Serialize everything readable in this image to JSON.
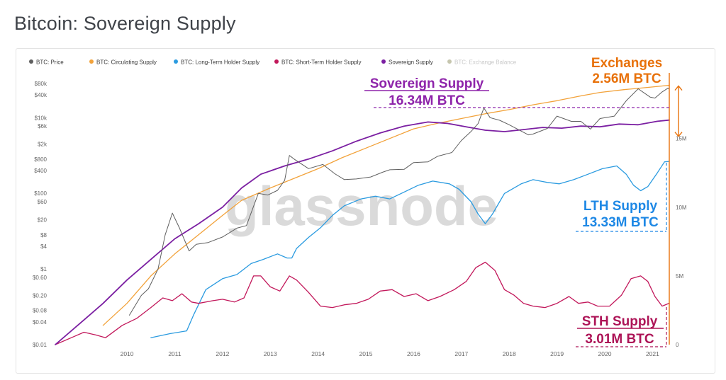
{
  "page": {
    "title": "Bitcoin: Sovereign Supply"
  },
  "colors": {
    "price": "#5f5f5f",
    "circulating": "#f2a23a",
    "lth": "#2b9be0",
    "sth": "#c2185b",
    "sovereign": "#7b1fa2",
    "exchange": "#b8b89a",
    "exchanges_annotation": "#e8710a",
    "sovereign_annotation": "#8e24aa",
    "lth_annotation": "#1e88e5",
    "sth_annotation": "#ad1457",
    "watermark": "#d9d9d9"
  },
  "chart_data": {
    "type": "line",
    "title": "Bitcoin: Sovereign Supply",
    "watermark": "glassnode",
    "x_ticks": [
      "2010",
      "2011",
      "2012",
      "2013",
      "2014",
      "2015",
      "2016",
      "2017",
      "2018",
      "2019",
      "2020",
      "2021"
    ],
    "x_range": [
      2009.0,
      2021.85
    ],
    "left_axis": {
      "scale": "log",
      "ticks": [
        "$80k",
        "$40k",
        "$10k",
        "$6k",
        "$2k",
        "$800",
        "$400",
        "$100",
        "$60",
        "$20",
        "$8",
        "$4",
        "$1",
        "$0.60",
        "$0.20",
        "$0.08",
        "$0.04",
        "$0.01"
      ],
      "tick_values": [
        80000,
        40000,
        10000,
        6000,
        2000,
        800,
        400,
        100,
        60,
        20,
        8,
        4,
        1,
        0.6,
        0.2,
        0.08,
        0.04,
        0.01
      ],
      "range": [
        0.01,
        80000
      ]
    },
    "right_axis": {
      "scale": "linear",
      "ticks": [
        "15M",
        "10M",
        "5M",
        "0"
      ],
      "tick_values": [
        15000000,
        10000000,
        5000000,
        0
      ],
      "range": [
        0,
        19000000
      ]
    },
    "legend": [
      {
        "name": "BTC: Price",
        "color_key": "price",
        "faded": false
      },
      {
        "name": "BTC: Circulating Supply",
        "color_key": "circulating",
        "faded": false
      },
      {
        "name": "BTC: Long-Term Holder Supply",
        "color_key": "lth",
        "faded": false
      },
      {
        "name": "BTC: Short-Term Holder Supply",
        "color_key": "sth",
        "faded": false
      },
      {
        "name": "Sovereign Supply",
        "color_key": "sovereign",
        "faded": false
      },
      {
        "name": "BTC: Exchange Balance",
        "color_key": "exchange",
        "faded": true
      }
    ],
    "series": [
      {
        "name": "BTC: Price",
        "axis": "left",
        "color_key": "price",
        "width": 1,
        "points": [
          [
            2010.55,
            0.06
          ],
          [
            2010.8,
            0.2
          ],
          [
            2010.95,
            0.3
          ],
          [
            2011.15,
            1
          ],
          [
            2011.3,
            8
          ],
          [
            2011.45,
            30
          ],
          [
            2011.6,
            12
          ],
          [
            2011.8,
            3
          ],
          [
            2011.95,
            4.5
          ],
          [
            2012.2,
            5
          ],
          [
            2012.5,
            7
          ],
          [
            2012.8,
            12
          ],
          [
            2013.0,
            14
          ],
          [
            2013.25,
            100
          ],
          [
            2013.45,
            90
          ],
          [
            2013.65,
            120
          ],
          [
            2013.8,
            220
          ],
          [
            2013.9,
            1000
          ],
          [
            2014.0,
            800
          ],
          [
            2014.3,
            450
          ],
          [
            2014.6,
            580
          ],
          [
            2014.85,
            330
          ],
          [
            2015.05,
            230
          ],
          [
            2015.3,
            240
          ],
          [
            2015.6,
            270
          ],
          [
            2015.85,
            360
          ],
          [
            2016.0,
            420
          ],
          [
            2016.3,
            430
          ],
          [
            2016.5,
            650
          ],
          [
            2016.8,
            680
          ],
          [
            2017.0,
            950
          ],
          [
            2017.3,
            1200
          ],
          [
            2017.5,
            2500
          ],
          [
            2017.7,
            4300
          ],
          [
            2017.85,
            7000
          ],
          [
            2017.97,
            18000
          ],
          [
            2018.1,
            10000
          ],
          [
            2018.3,
            8500
          ],
          [
            2018.5,
            6500
          ],
          [
            2018.9,
            3500
          ],
          [
            2019.0,
            3700
          ],
          [
            2019.3,
            5200
          ],
          [
            2019.5,
            11000
          ],
          [
            2019.8,
            8000
          ],
          [
            2020.0,
            8000
          ],
          [
            2020.2,
            5000
          ],
          [
            2020.4,
            9500
          ],
          [
            2020.7,
            11000
          ],
          [
            2020.95,
            28000
          ],
          [
            2021.2,
            58000
          ],
          [
            2021.45,
            35000
          ],
          [
            2021.55,
            33000
          ],
          [
            2021.7,
            48000
          ],
          [
            2021.82,
            60000
          ],
          [
            2021.85,
            57000
          ]
        ]
      },
      {
        "name": "BTC: Circulating Supply",
        "axis": "right",
        "color_key": "circulating",
        "width": 1.3,
        "points": [
          [
            2010.0,
            1400000
          ],
          [
            2010.5,
            3000000
          ],
          [
            2011.0,
            5000000
          ],
          [
            2011.5,
            6600000
          ],
          [
            2012.0,
            8000000
          ],
          [
            2012.5,
            9400000
          ],
          [
            2012.9,
            10500000
          ],
          [
            2013.5,
            11400000
          ],
          [
            2014.0,
            12100000
          ],
          [
            2014.5,
            12800000
          ],
          [
            2015.0,
            13600000
          ],
          [
            2015.5,
            14300000
          ],
          [
            2016.0,
            15000000
          ],
          [
            2016.5,
            15700000
          ],
          [
            2017.0,
            16100000
          ],
          [
            2017.5,
            16450000
          ],
          [
            2018.0,
            16800000
          ],
          [
            2018.5,
            17100000
          ],
          [
            2019.0,
            17450000
          ],
          [
            2019.5,
            17750000
          ],
          [
            2020.0,
            18100000
          ],
          [
            2020.4,
            18350000
          ],
          [
            2020.9,
            18550000
          ],
          [
            2021.5,
            18750000
          ],
          [
            2021.85,
            18870000
          ]
        ]
      },
      {
        "name": "BTC: Long-Term Holder Supply",
        "axis": "right",
        "color_key": "lth",
        "width": 1.3,
        "points": [
          [
            2011.0,
            500000
          ],
          [
            2011.4,
            800000
          ],
          [
            2011.75,
            1000000
          ],
          [
            2011.9,
            2200000
          ],
          [
            2012.15,
            4000000
          ],
          [
            2012.5,
            4800000
          ],
          [
            2012.8,
            5100000
          ],
          [
            2013.1,
            5900000
          ],
          [
            2013.35,
            6200000
          ],
          [
            2013.65,
            6600000
          ],
          [
            2013.85,
            6300000
          ],
          [
            2013.95,
            6300000
          ],
          [
            2014.05,
            7000000
          ],
          [
            2014.3,
            7800000
          ],
          [
            2014.55,
            8500000
          ],
          [
            2014.8,
            9400000
          ],
          [
            2015.05,
            10100000
          ],
          [
            2015.4,
            10600000
          ],
          [
            2015.7,
            10800000
          ],
          [
            2016.0,
            10600000
          ],
          [
            2016.3,
            11100000
          ],
          [
            2016.6,
            11600000
          ],
          [
            2016.9,
            11900000
          ],
          [
            2017.25,
            11700000
          ],
          [
            2017.45,
            11300000
          ],
          [
            2017.7,
            10400000
          ],
          [
            2017.85,
            9500000
          ],
          [
            2018.0,
            8800000
          ],
          [
            2018.15,
            9500000
          ],
          [
            2018.4,
            11000000
          ],
          [
            2018.75,
            11700000
          ],
          [
            2019.0,
            12000000
          ],
          [
            2019.3,
            11800000
          ],
          [
            2019.55,
            11700000
          ],
          [
            2019.85,
            12000000
          ],
          [
            2020.15,
            12400000
          ],
          [
            2020.45,
            12800000
          ],
          [
            2020.75,
            13000000
          ],
          [
            2020.95,
            12400000
          ],
          [
            2021.1,
            11600000
          ],
          [
            2021.25,
            11200000
          ],
          [
            2021.4,
            11500000
          ],
          [
            2021.6,
            12500000
          ],
          [
            2021.75,
            13300000
          ],
          [
            2021.85,
            13330000
          ]
        ]
      },
      {
        "name": "BTC: Short-Term Holder Supply",
        "axis": "right",
        "color_key": "sth",
        "width": 1.3,
        "points": [
          [
            2009.0,
            0
          ],
          [
            2009.4,
            600000
          ],
          [
            2009.6,
            900000
          ],
          [
            2009.85,
            700000
          ],
          [
            2010.05,
            500000
          ],
          [
            2010.4,
            1400000
          ],
          [
            2010.7,
            1900000
          ],
          [
            2011.0,
            2700000
          ],
          [
            2011.25,
            3400000
          ],
          [
            2011.45,
            3200000
          ],
          [
            2011.65,
            3700000
          ],
          [
            2011.85,
            3100000
          ],
          [
            2012.0,
            3000000
          ],
          [
            2012.3,
            3200000
          ],
          [
            2012.5,
            3300000
          ],
          [
            2012.75,
            3100000
          ],
          [
            2012.95,
            3400000
          ],
          [
            2013.15,
            5000000
          ],
          [
            2013.3,
            5000000
          ],
          [
            2013.5,
            4200000
          ],
          [
            2013.7,
            3900000
          ],
          [
            2013.9,
            5000000
          ],
          [
            2014.05,
            4700000
          ],
          [
            2014.3,
            3800000
          ],
          [
            2014.55,
            2800000
          ],
          [
            2014.8,
            2700000
          ],
          [
            2015.05,
            2900000
          ],
          [
            2015.3,
            3000000
          ],
          [
            2015.55,
            3300000
          ],
          [
            2015.8,
            3900000
          ],
          [
            2016.05,
            4000000
          ],
          [
            2016.3,
            3500000
          ],
          [
            2016.55,
            3700000
          ],
          [
            2016.8,
            3200000
          ],
          [
            2017.05,
            3500000
          ],
          [
            2017.35,
            4000000
          ],
          [
            2017.6,
            4600000
          ],
          [
            2017.8,
            5600000
          ],
          [
            2018.0,
            6000000
          ],
          [
            2018.2,
            5400000
          ],
          [
            2018.4,
            4000000
          ],
          [
            2018.6,
            3600000
          ],
          [
            2018.8,
            3000000
          ],
          [
            2019.0,
            2800000
          ],
          [
            2019.25,
            2700000
          ],
          [
            2019.5,
            3000000
          ],
          [
            2019.75,
            3500000
          ],
          [
            2019.95,
            3000000
          ],
          [
            2020.15,
            3100000
          ],
          [
            2020.35,
            2800000
          ],
          [
            2020.6,
            2800000
          ],
          [
            2020.85,
            3600000
          ],
          [
            2021.05,
            4800000
          ],
          [
            2021.25,
            5000000
          ],
          [
            2021.4,
            4600000
          ],
          [
            2021.55,
            3500000
          ],
          [
            2021.7,
            2800000
          ],
          [
            2021.85,
            3010000
          ]
        ]
      },
      {
        "name": "Sovereign Supply",
        "axis": "right",
        "color_key": "sovereign",
        "width": 1.8,
        "points": [
          [
            2009.0,
            0
          ],
          [
            2009.5,
            1500000
          ],
          [
            2010.0,
            3000000
          ],
          [
            2010.5,
            4700000
          ],
          [
            2011.0,
            6200000
          ],
          [
            2011.5,
            7700000
          ],
          [
            2012.0,
            8800000
          ],
          [
            2012.5,
            10000000
          ],
          [
            2012.9,
            11400000
          ],
          [
            2013.3,
            12400000
          ],
          [
            2013.8,
            13000000
          ],
          [
            2014.3,
            13500000
          ],
          [
            2014.8,
            14100000
          ],
          [
            2015.3,
            14800000
          ],
          [
            2015.8,
            15400000
          ],
          [
            2016.3,
            15900000
          ],
          [
            2016.8,
            16200000
          ],
          [
            2017.2,
            16100000
          ],
          [
            2017.6,
            15850000
          ],
          [
            2018.0,
            15600000
          ],
          [
            2018.4,
            15500000
          ],
          [
            2018.8,
            15650000
          ],
          [
            2019.2,
            15800000
          ],
          [
            2019.6,
            15750000
          ],
          [
            2020.0,
            15900000
          ],
          [
            2020.4,
            15850000
          ],
          [
            2020.8,
            16050000
          ],
          [
            2021.2,
            16000000
          ],
          [
            2021.6,
            16250000
          ],
          [
            2021.85,
            16340000
          ]
        ]
      }
    ],
    "annotations": {
      "exchanges": {
        "label": "Exchanges",
        "value": "2.56M BTC",
        "color_key": "exchanges_annotation",
        "series_value": 2560000
      },
      "sovereign": {
        "label": "Sovereign Supply",
        "value": "16.34M BTC",
        "color_key": "sovereign_annotation",
        "series_value": 16340000
      },
      "lth": {
        "label": "LTH Supply",
        "value": "13.33M BTC",
        "color_key": "lth_annotation",
        "series_value": 13330000
      },
      "sth": {
        "label": "STH Supply",
        "value": "3.01M BTC",
        "color_key": "sth_annotation",
        "series_value": 3010000
      }
    }
  }
}
